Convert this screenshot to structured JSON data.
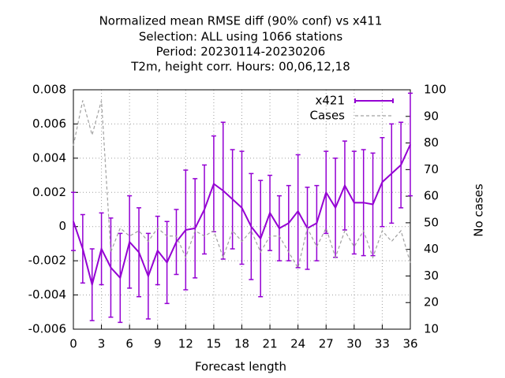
{
  "chart_data": {
    "type": "line",
    "title": [
      "Normalized mean RMSE diff (90% conf) vs x411",
      "Selection: ALL using  1066 stations",
      "Period: 20230114-20230206",
      "T2m, height corr.    Hours:  00,06,12,18"
    ],
    "x_label": "Forecast length",
    "y2_label": "No cases",
    "x": [
      0,
      1,
      2,
      3,
      4,
      5,
      6,
      7,
      8,
      9,
      10,
      11,
      12,
      13,
      14,
      15,
      16,
      17,
      18,
      19,
      20,
      21,
      22,
      23,
      24,
      25,
      26,
      27,
      28,
      29,
      30,
      31,
      32,
      33,
      34,
      35,
      36
    ],
    "series": [
      {
        "name": "x421",
        "color": "#9400d3",
        "values": [
          0.0003,
          -0.0013,
          -0.0034,
          -0.0013,
          -0.0024,
          -0.003,
          -0.0009,
          -0.0015,
          -0.0029,
          -0.0014,
          -0.0021,
          -0.0009,
          -0.0002,
          -0.0001,
          0.001,
          0.0025,
          0.0021,
          0.0016,
          0.0011,
          0.0,
          -0.0007,
          0.0008,
          -0.0001,
          0.0002,
          0.0009,
          -0.0001,
          0.0002,
          0.002,
          0.0011,
          0.0024,
          0.0014,
          0.0014,
          0.0013,
          0.0026,
          0.0031,
          0.0036,
          0.0048
        ],
        "errors": [
          0.0017,
          0.002,
          0.0021,
          0.0021,
          0.0029,
          0.0026,
          0.0027,
          0.0026,
          0.0025,
          0.002,
          0.0024,
          0.0019,
          0.0035,
          0.0029,
          0.0026,
          0.0028,
          0.004,
          0.0029,
          0.0033,
          0.0031,
          0.0034,
          0.0022,
          0.0019,
          0.0022,
          0.0033,
          0.0024,
          0.0022,
          0.0024,
          0.0029,
          0.0026,
          0.003,
          0.0031,
          0.003,
          0.0026,
          0.0029,
          0.0025,
          0.003
        ]
      },
      {
        "name": "Cases",
        "color": "#a0a0a0",
        "axis": "y2",
        "dashed": true,
        "values": [
          79,
          96,
          83,
          96,
          39,
          48,
          45,
          47,
          43,
          48,
          45,
          45,
          37,
          47,
          45,
          47,
          37,
          47,
          43,
          47,
          39,
          45,
          45,
          39,
          33,
          48,
          41,
          48,
          37,
          47,
          41,
          47,
          37,
          47,
          43,
          47,
          35
        ]
      }
    ],
    "xlim": [
      0,
      36
    ],
    "xticks": [
      0,
      3,
      6,
      9,
      12,
      15,
      18,
      21,
      24,
      27,
      30,
      33,
      36
    ],
    "ylim": [
      -0.006,
      0.008
    ],
    "yticks": [
      -0.006,
      -0.004,
      -0.002,
      0,
      0.002,
      0.004,
      0.006,
      0.008
    ],
    "y2lim": [
      10,
      100
    ],
    "y2ticks": [
      10,
      20,
      30,
      40,
      50,
      60,
      70,
      80,
      90,
      100
    ],
    "grid": true,
    "legend": "top-right"
  }
}
